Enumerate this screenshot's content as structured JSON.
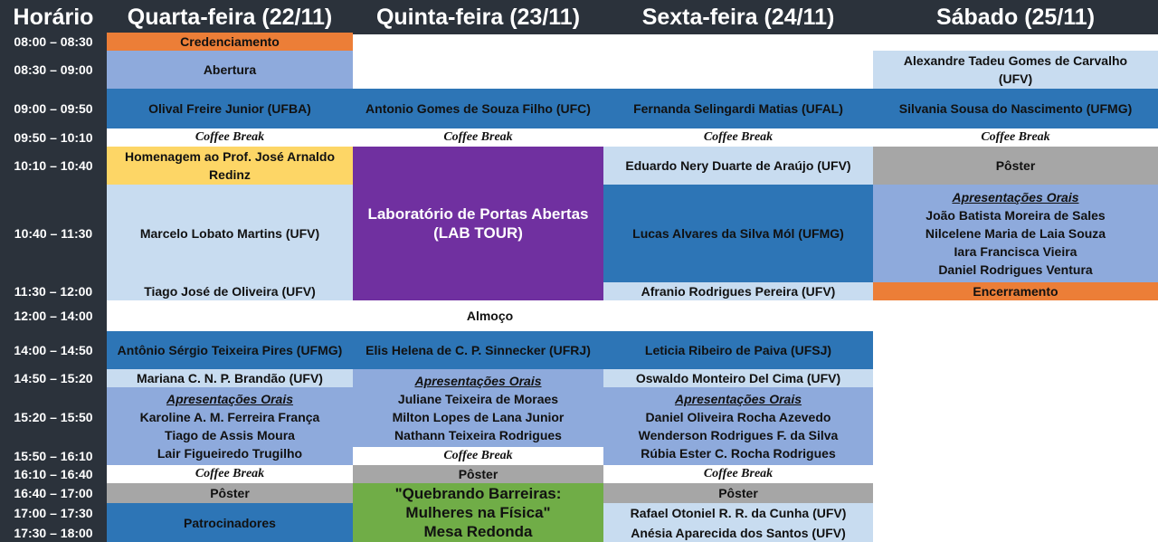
{
  "headers": {
    "time": "Horário",
    "wed": "Quarta-feira (22/11)",
    "thu": "Quinta-feira (23/11)",
    "fri": "Sexta-feira (24/11)",
    "sat": "Sábado (25/11)"
  },
  "times": [
    "08:00 – 08:30",
    "08:30 – 09:00",
    "09:00 – 09:50",
    "09:50 – 10:10",
    "10:10 – 10:40",
    "10:40 – 11:30",
    "11:30 – 12:00",
    "12:00 – 14:00",
    "14:00 – 14:50",
    "14:50 – 15:20",
    "15:20 – 15:50",
    "15:50 – 16:10",
    "16:10 – 16:40",
    "16:40 – 17:00",
    "17:00 – 17:30",
    "17:30 – 18:00"
  ],
  "common": {
    "coffee": "Coffee Break",
    "almoco": "Almoço",
    "poster": "Pôster",
    "oral": "Apresentações Orais"
  },
  "wed": {
    "credenciamento": "Credenciamento",
    "abertura": "Abertura",
    "olival": "Olival Freire Junior (UFBA)",
    "homenagem": [
      "Homenagem ao Prof. José Arnaldo",
      "Redinz"
    ],
    "marcelo": "Marcelo Lobato Martins (UFV)",
    "tiago1": "Tiago José de Oliveira (UFV)",
    "antonio_sergio": "Antônio Sérgio Teixeira Pires (UFMG)",
    "mariana": "Mariana C. N. P. Brandão (UFV)",
    "orals": [
      "Karoline A. M. Ferreira França",
      "Tiago de Assis Moura",
      "Lair Figueiredo Trugilho"
    ],
    "patrocinadores": "Patrocinadores"
  },
  "thu": {
    "antonio_gomes": "Antonio Gomes de Souza Filho (UFC)",
    "lab": [
      "Laboratório de Portas Abertas",
      "(LAB TOUR)"
    ],
    "elis": "Elis Helena de C. P. Sinnecker (UFRJ)",
    "orals": [
      "Juliane Teixeira de Moraes",
      "Milton Lopes de Lana Junior",
      "Nathann Teixeira Rodrigues"
    ],
    "mesa": [
      "\"Quebrando Barreiras:",
      "Mulheres na Física\"",
      "Mesa Redonda"
    ]
  },
  "fri": {
    "fernanda": "Fernanda Selingardi Matias (UFAL)",
    "eduardo": "Eduardo Nery Duarte de Araújo (UFV)",
    "lucas": "Lucas Alvares da Silva Mól (UFMG)",
    "afranio": "Afranio Rodrigues Pereira (UFV)",
    "leticia": "Leticia Ribeiro de Paiva (UFSJ)",
    "oswaldo": "Oswaldo Monteiro Del Cima (UFV)",
    "orals": [
      "Daniel Oliveira Rocha Azevedo",
      "Wenderson Rodrigues F. da Silva",
      "Rúbia Ester C. Rocha Rodrigues"
    ],
    "rafael": "Rafael Otoniel R. R. da Cunha (UFV)",
    "anesia": "Anésia Aparecida dos Santos (UFV)"
  },
  "sat": {
    "alexandre": [
      "Alexandre Tadeu Gomes de Carvalho",
      "(UFV)"
    ],
    "silvania": "Silvania Sousa do Nascimento (UFMG)",
    "orals": [
      "João Batista Moreira de Sales",
      "Nilcelene Maria de Laia Souza",
      "Iara Francisca Vieira",
      "Daniel Rodrigues Ventura"
    ],
    "encerramento": "Encerramento"
  }
}
